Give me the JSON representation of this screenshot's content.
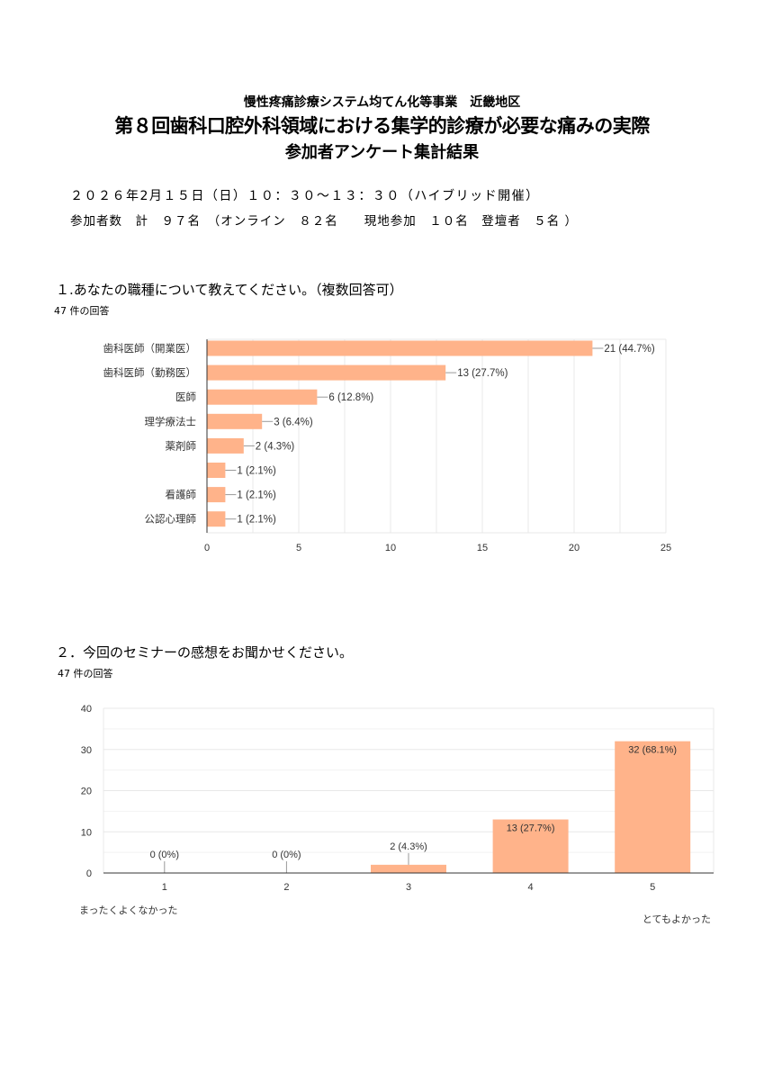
{
  "header": {
    "subtitle": "慢性疼痛診療システム均てん化等事業　近畿地区",
    "title": "第８回歯科口腔外科領域における集学的診療が必要な痛みの実際",
    "title2": "参加者アンケート集計結果",
    "date_line": "２０２６年2月１５日（日）１０：３０～１３：３０（ハイブリッド開催）",
    "attendance_line": "参加者数　計　９７名　（オンライン　８２名　　現地参加　１０名　登壇者　５名 ）"
  },
  "questions": [
    {
      "label": "１.あなたの職種について教えてください。（複数回答可）",
      "count": "47 件の回答"
    },
    {
      "label": "２．今回のセミナーの感想をお聞かせください。",
      "count": "47 件の回答"
    }
  ],
  "colors": {
    "bar": "#ffb38a",
    "grid": "#e8e8e8",
    "axis": "#333333",
    "text": "#333333"
  },
  "chart_data": [
    {
      "type": "bar",
      "orientation": "horizontal",
      "categories": [
        "歯科医師（開業医）",
        "歯科医師（勤務医）",
        "医師",
        "理学療法士",
        "薬剤師",
        "",
        "看護師",
        "公認心理師"
      ],
      "values": [
        21,
        13,
        6,
        3,
        2,
        1,
        1,
        1
      ],
      "data_labels": [
        "21 (44.7%)",
        "13 (27.7%)",
        "6 (12.8%)",
        "3 (6.4%)",
        "2 (4.3%)",
        "1 (2.1%)",
        "1 (2.1%)",
        "1 (2.1%)"
      ],
      "xlim": [
        0,
        25
      ],
      "xticks": [
        "0",
        "5",
        "10",
        "15",
        "20",
        "25"
      ],
      "grid": true
    },
    {
      "type": "bar",
      "orientation": "vertical",
      "categories": [
        "1",
        "2",
        "3",
        "4",
        "5"
      ],
      "values": [
        0,
        0,
        2,
        13,
        32
      ],
      "data_labels": [
        "0 (0%)",
        "0 (0%)",
        "2 (4.3%)",
        "13 (27.7%)",
        "32 (68.1%)"
      ],
      "ylim": [
        0,
        40
      ],
      "yticks": [
        "0",
        "10",
        "20",
        "30",
        "40"
      ],
      "low_label": "まったくよくなかった",
      "high_label": "とてもよかった",
      "grid": true
    }
  ]
}
